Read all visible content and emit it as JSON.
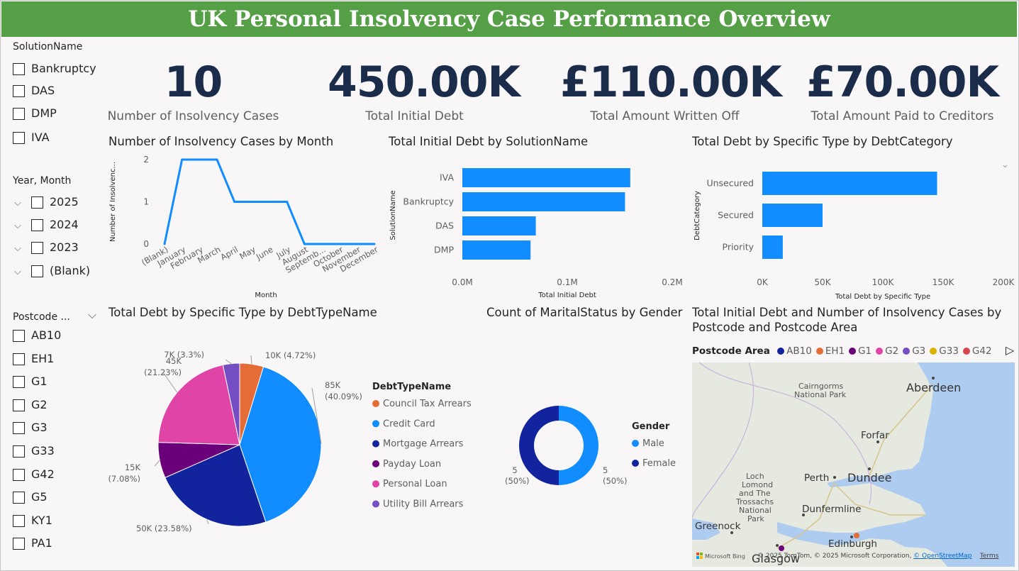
{
  "title": "UK Personal Insolvency Case Performance Overview",
  "slicer_solution": {
    "header": "SolutionName",
    "items": [
      "Bankruptcy",
      "DAS",
      "DMP",
      "IVA"
    ]
  },
  "slicer_year": {
    "header": "Year, Month",
    "items": [
      "2025",
      "2024",
      "2023",
      "(Blank)"
    ]
  },
  "slicer_postcode": {
    "header": "Postcode ...",
    "items": [
      "AB10",
      "EH1",
      "G1",
      "G2",
      "G3",
      "G33",
      "G42",
      "G5",
      "KY1",
      "PA1"
    ]
  },
  "cards": [
    {
      "value": "10",
      "label": "Number of Insolvency Cases"
    },
    {
      "value": "450.00K",
      "label": "Total Initial Debt"
    },
    {
      "value": "£110.00K",
      "label": "Total Amount Written Off"
    },
    {
      "value": "£70.00K",
      "label": "Total Amount Paid to Creditors"
    }
  ],
  "chart_titles": {
    "line": "Number of Insolvency Cases by Month",
    "bar_solution": "Total Initial Debt by SolutionName",
    "bar_category": "Total Debt by Specific Type by DebtCategory",
    "pie": "Total Debt by Specific Type by DebtTypeName",
    "donut": "Count of MaritalStatus by Gender",
    "map_line1": "Total Initial Debt and Number of Insolvency Cases by",
    "map_line2": "Postcode and Postcode Area"
  },
  "chart_data": [
    {
      "type": "line",
      "x": [
        "(Blank)",
        "January",
        "February",
        "March",
        "April",
        "May",
        "June",
        "July",
        "August",
        "Septemb...",
        "October",
        "November",
        "December"
      ],
      "values": [
        0,
        2,
        2,
        2,
        1,
        1,
        1,
        1,
        0,
        0,
        0,
        0,
        0
      ],
      "xlabel": "Month",
      "ylabel": "Number of Insolvenc...",
      "yticks": [
        "0",
        "1",
        "2"
      ],
      "ylim": [
        0,
        2
      ],
      "color": "#118dff"
    },
    {
      "type": "bar",
      "orientation": "horizontal",
      "categories": [
        "IVA",
        "Bankruptcy",
        "DAS",
        "DMP"
      ],
      "values": [
        160000,
        155000,
        70000,
        65000
      ],
      "xlabel": "Total Initial Debt",
      "ylabel": "SolutionName",
      "xticks": [
        "0.0M",
        "0.1M",
        "0.2M"
      ],
      "xlim": [
        0,
        200000
      ],
      "color": "#118dff"
    },
    {
      "type": "bar",
      "orientation": "horizontal",
      "categories": [
        "Unsecured",
        "Secured",
        "Priority"
      ],
      "values": [
        145000,
        50000,
        17000
      ],
      "xlabel": "Total Debt by Specific Type",
      "ylabel": "DebtCategory",
      "xticks": [
        "0K",
        "50K",
        "100K",
        "150K",
        "200K"
      ],
      "xlim": [
        0,
        200000
      ],
      "color": "#118dff"
    },
    {
      "type": "pie",
      "legend_title": "DebtTypeName",
      "slices": [
        {
          "name": "Council Tax Arrears",
          "value": 10000,
          "label1": "10K (4.72%)",
          "label2": "",
          "color": "#e66c37"
        },
        {
          "name": "Credit Card",
          "value": 85000,
          "label1": "85K",
          "label2": "(40.09%)",
          "color": "#118dff"
        },
        {
          "name": "Mortgage Arrears",
          "value": 50000,
          "label1": "50K (23.58%)",
          "label2": "",
          "color": "#12239e"
        },
        {
          "name": "Payday Loan",
          "value": 15000,
          "label1": "15K",
          "label2": "(7.08%)",
          "color": "#6b007b"
        },
        {
          "name": "Personal Loan",
          "value": 45000,
          "label1": "45K",
          "label2": "(21.23%)",
          "color": "#e044a7"
        },
        {
          "name": "Utility Bill Arrears",
          "value": 7000,
          "label1": "7K (3.3%)",
          "label2": "",
          "color": "#744ec2"
        }
      ]
    },
    {
      "type": "pie",
      "variant": "donut",
      "legend_title": "Gender",
      "slices": [
        {
          "name": "Male",
          "value": 5,
          "label1": "5",
          "label2": "(50%)",
          "color": "#118dff"
        },
        {
          "name": "Female",
          "value": 5,
          "label1": "5",
          "label2": "(50%)",
          "color": "#12239e"
        }
      ]
    }
  ],
  "map": {
    "legend_title": "Postcode Area",
    "legend": [
      {
        "name": "AB10",
        "color": "#12239e"
      },
      {
        "name": "EH1",
        "color": "#e66c37"
      },
      {
        "name": "G1",
        "color": "#6b007b"
      },
      {
        "name": "G2",
        "color": "#e044a7"
      },
      {
        "name": "G3",
        "color": "#744ec2"
      },
      {
        "name": "G33",
        "color": "#d9b300"
      },
      {
        "name": "G42",
        "color": "#d64550"
      }
    ],
    "places": {
      "cairngorms1": "Cairngorms",
      "cairngorms2": "National Park",
      "aberdeen": "Aberdeen",
      "forfar": "Forfar",
      "perth": "Perth",
      "dundee": "Dundee",
      "loch1": "Loch",
      "loch2": "Lomond",
      "loch3": "and The",
      "loch4": "Trossachs",
      "loch5": "National",
      "loch6": "Park",
      "dunfermline": "Dunfermline",
      "greenock": "Greenock",
      "edinburgh": "Edinburgh",
      "glasgow": "Glasgow"
    },
    "bing": "Microsoft Bing",
    "copyright": "© 2025 TomTom, © 2025 Microsoft Corporation, ",
    "osm": "© OpenStreetMap",
    "terms": "Terms"
  }
}
